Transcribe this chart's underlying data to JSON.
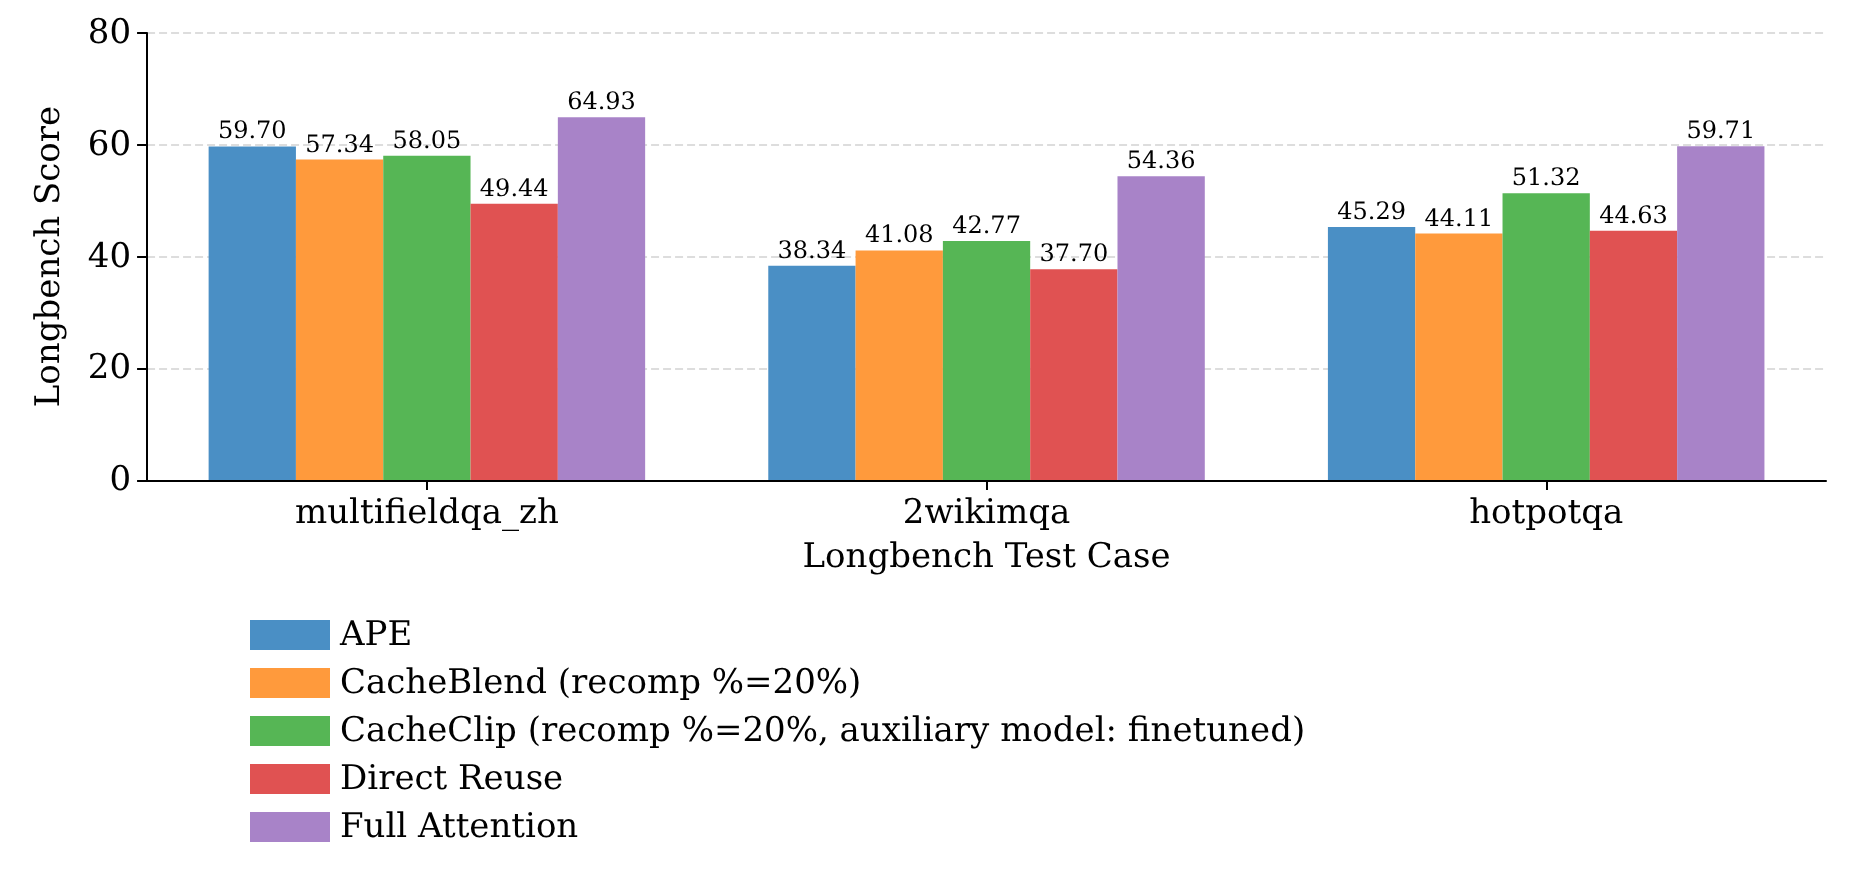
{
  "chart_data": {
    "type": "bar",
    "xlabel": "Longbench Test Case",
    "ylabel": "Longbench Score",
    "categories": [
      "multifieldqa_zh",
      "2wikimqa",
      "hotpotqa"
    ],
    "series": [
      {
        "name": "APE",
        "color": "#4a8fc5",
        "values": [
          59.7,
          38.34,
          45.29
        ],
        "value_labels": [
          "59.70",
          "38.34",
          "45.29"
        ]
      },
      {
        "name": "CacheBlend (recomp %=20%)",
        "color": "#ff9a3c",
        "values": [
          57.34,
          41.08,
          44.11
        ],
        "value_labels": [
          "57.34",
          "41.08",
          "44.11"
        ]
      },
      {
        "name": "CacheClip (recomp %=20%, auxiliary model: finetuned)",
        "color": "#56b655",
        "values": [
          58.05,
          42.77,
          51.32
        ],
        "value_labels": [
          "58.05",
          "42.77",
          "51.32"
        ]
      },
      {
        "name": "Direct Reuse",
        "color": "#e05252",
        "values": [
          49.44,
          37.7,
          44.63
        ],
        "value_labels": [
          "49.44",
          "37.70",
          "44.63"
        ]
      },
      {
        "name": "Full Attention",
        "color": "#a883c8",
        "values": [
          64.93,
          54.36,
          59.71
        ],
        "value_labels": [
          "64.93",
          "54.36",
          "59.71"
        ]
      }
    ],
    "ylim": [
      0,
      80
    ],
    "yticks": [
      0,
      20,
      40,
      60,
      80
    ],
    "grid": "y",
    "legend": "bottom"
  }
}
